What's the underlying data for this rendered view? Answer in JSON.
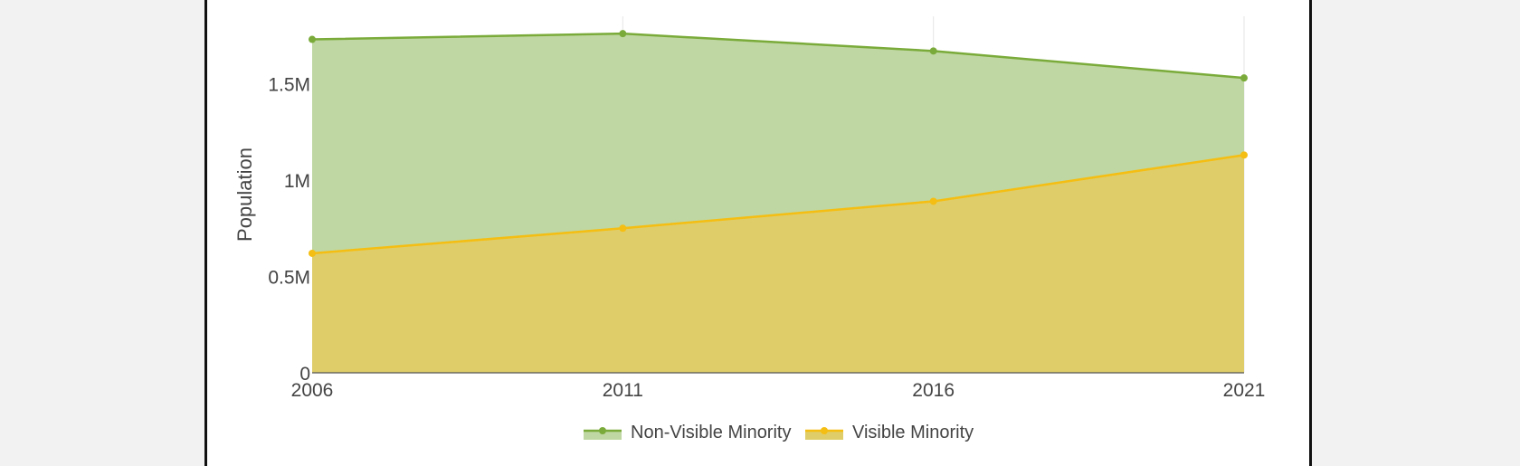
{
  "colors": {
    "non_visible_minority": "#7aab3a",
    "visible_minority": "#f5be12",
    "non_visible_minority_fill": "#bfd7a2",
    "visible_minority_fill": "#dfcd69"
  },
  "chart_data": {
    "type": "area",
    "stacked": true,
    "x": [
      "2006",
      "2011",
      "2016",
      "2021"
    ],
    "series": [
      {
        "name": "Non-Visible Minority",
        "values": [
          1110000,
          1010000,
          780000,
          400000
        ],
        "stack_totals": [
          1730000,
          1760000,
          1670000,
          1530000
        ]
      },
      {
        "name": "Visible Minority",
        "values": [
          620000,
          750000,
          890000,
          1130000
        ]
      }
    ],
    "title": "",
    "xlabel": "",
    "ylabel": "Population",
    "ylim": [
      0,
      1850000
    ],
    "y_ticks": [
      {
        "value": 0,
        "label": "0"
      },
      {
        "value": 500000,
        "label": "0.5M"
      },
      {
        "value": 1000000,
        "label": "1M"
      },
      {
        "value": 1500000,
        "label": "1.5M"
      }
    ],
    "grid": true,
    "legend_position": "bottom-center"
  }
}
